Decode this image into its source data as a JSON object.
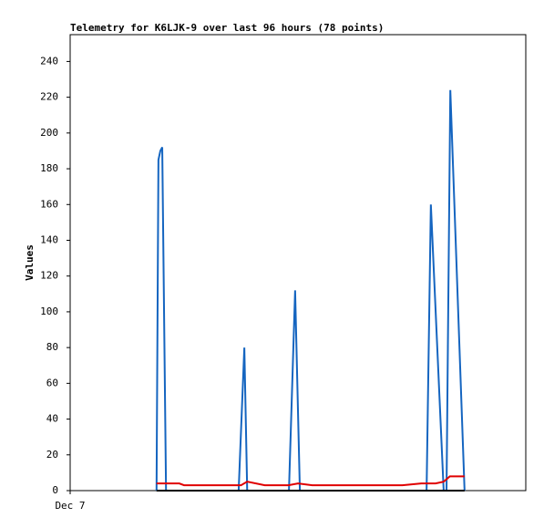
{
  "chart_data": {
    "type": "line",
    "title": "Telemetry for K6LJK-9 over last 96 hours (78 points)",
    "ylabel": "Values",
    "xlim": [
      0,
      96
    ],
    "xticks": [
      {
        "value": 0,
        "label": "Dec 7"
      }
    ],
    "ylim": [
      0,
      255
    ],
    "yticks": [
      0,
      20,
      40,
      60,
      80,
      100,
      120,
      140,
      160,
      180,
      200,
      220,
      240
    ],
    "series": [
      {
        "color": "#1565c0",
        "x": [
          18.2,
          18.6,
          19.0,
          19.4,
          20.2,
          35.5,
          36.7,
          37.3,
          46.1,
          47.4,
          48.4,
          75.1,
          76.0,
          78.7,
          79.3,
          80.1,
          83.1
        ],
        "values": [
          0,
          185,
          190,
          192,
          0,
          0,
          80,
          0,
          0,
          112,
          0,
          0,
          160,
          0,
          0,
          224,
          0
        ]
      },
      {
        "color": "#e00000",
        "x": [
          18.2,
          23,
          24,
          36,
          37.3,
          41,
          46,
          48,
          51,
          70,
          74,
          77,
          78.7,
          80,
          83.1
        ],
        "values": [
          4,
          4,
          3,
          3,
          5,
          3,
          3,
          4,
          3,
          3,
          4,
          4,
          5,
          8,
          8
        ]
      },
      {
        "color": "#000000",
        "x": [
          18.2,
          83.1
        ],
        "values": [
          0,
          0
        ]
      }
    ]
  }
}
